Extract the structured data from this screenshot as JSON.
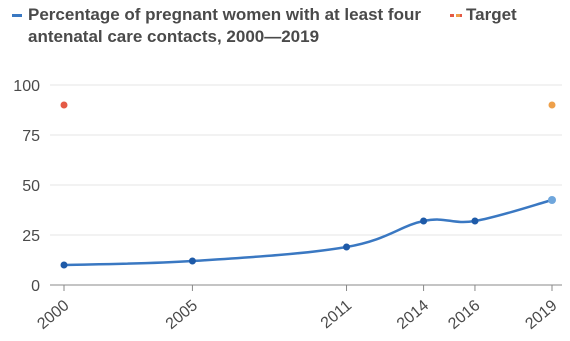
{
  "chart_data": {
    "type": "line",
    "legend": {
      "series_label": "Percentage of pregnant women with at least four antenatal care contacts, 2000—2019",
      "target_label": "Target"
    },
    "x": [
      2000,
      2005,
      2011,
      2014,
      2016,
      2019
    ],
    "xlim": [
      2000,
      2019
    ],
    "ylim": [
      0,
      100
    ],
    "yticks": [
      0,
      25,
      50,
      75,
      100
    ],
    "xticks": [
      "2000",
      "2005",
      "2011",
      "2014",
      "2016",
      "2019"
    ],
    "grid": "horizontal",
    "legend_placement": "top",
    "series": [
      {
        "name": "Percentage of pregnant women with at least four antenatal care contacts, 2000—2019",
        "color": "#3a78c2",
        "points": [
          {
            "x": 2000,
            "y": 10
          },
          {
            "x": 2005,
            "y": 12
          },
          {
            "x": 2011,
            "y": 19
          },
          {
            "x": 2014,
            "y": 32
          },
          {
            "x": 2016,
            "y": 32
          },
          {
            "x": 2019,
            "y": 42.5
          }
        ]
      },
      {
        "name": "Target",
        "style": "dashed",
        "color_start": "#e45a45",
        "color_end": "#eea04a",
        "points": [
          {
            "x": 2000,
            "y": 90
          },
          {
            "x": 2019,
            "y": 90
          }
        ]
      }
    ]
  }
}
